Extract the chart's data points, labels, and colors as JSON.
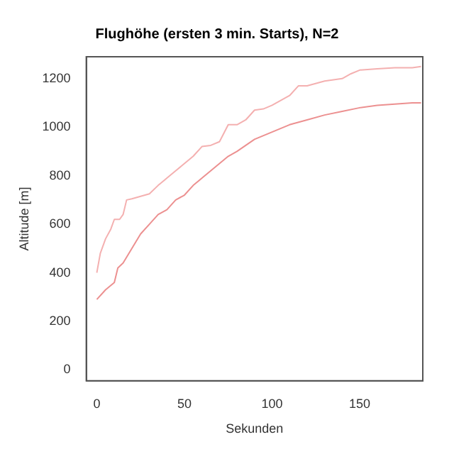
{
  "chart_data": {
    "type": "line",
    "title": "Flughöhe (ersten 3 min. Starts), N=2",
    "xlabel": "Sekunden",
    "ylabel": "Altitude [m]",
    "xlim": [
      -6,
      186
    ],
    "xticks": [
      0,
      50,
      100,
      150
    ],
    "ylim": [
      -45,
      1290
    ],
    "yticks": [
      0,
      200,
      400,
      600,
      800,
      1000,
      1200
    ],
    "grid": false,
    "legend": false,
    "marker": "none",
    "line_style": "solid",
    "series": [
      {
        "color": "#f4b0b0",
        "x": [
          0,
          2,
          5,
          8,
          10,
          13,
          15,
          17,
          20,
          25,
          30,
          35,
          40,
          45,
          50,
          55,
          60,
          65,
          70,
          75,
          80,
          85,
          90,
          95,
          100,
          110,
          115,
          120,
          130,
          140,
          145,
          150,
          160,
          170,
          180,
          185
        ],
        "values": [
          400,
          480,
          540,
          580,
          620,
          620,
          640,
          700,
          705,
          715,
          725,
          760,
          790,
          820,
          850,
          880,
          920,
          925,
          940,
          1010,
          1010,
          1030,
          1070,
          1075,
          1090,
          1130,
          1170,
          1170,
          1190,
          1200,
          1220,
          1235,
          1240,
          1245,
          1245,
          1250
        ]
      },
      {
        "color": "#ec9090",
        "x": [
          0,
          5,
          10,
          12,
          15,
          20,
          25,
          30,
          35,
          40,
          45,
          50,
          55,
          60,
          65,
          70,
          75,
          80,
          90,
          100,
          110,
          120,
          130,
          140,
          150,
          160,
          170,
          180,
          185
        ],
        "values": [
          290,
          330,
          360,
          420,
          440,
          500,
          560,
          600,
          640,
          660,
          700,
          720,
          760,
          790,
          820,
          850,
          880,
          900,
          950,
          980,
          1010,
          1030,
          1050,
          1065,
          1080,
          1090,
          1095,
          1100,
          1100
        ]
      }
    ]
  }
}
